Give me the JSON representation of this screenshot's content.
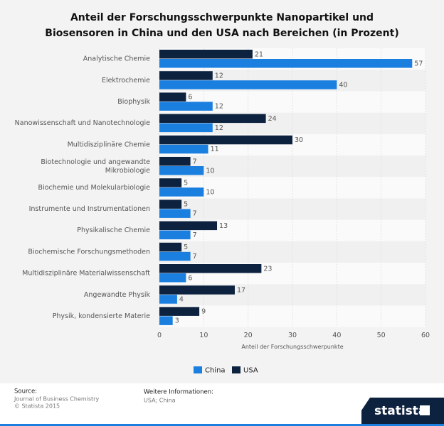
{
  "chart_data": {
    "type": "hbar",
    "title": "Anteil der Forschungsschwerpunkte Nanopartikel und Biosensoren in China und den USA nach Bereichen (in Prozent)",
    "categories": [
      "Analytische Chemie",
      "Elektrochemie",
      "Biophysik",
      "Nanowissenschaft und Nanotechnologie",
      "Multidisziplinäre Chemie",
      "Biotechnologie und angewandte Mikrobiologie",
      "Biochemie und Molekularbiologie",
      "Instrumente und Instrumentationen",
      "Physikalische Chemie",
      "Biochemische Forschungsmethoden",
      "Multidisziplinäre Materialwissenschaft",
      "Angewandte Physik",
      "Physik, kondensierte Materie"
    ],
    "series": [
      {
        "name": "China",
        "color": "#1b7fe0",
        "values": [
          57,
          40,
          12,
          12,
          11,
          10,
          10,
          7,
          7,
          7,
          6,
          4,
          3
        ]
      },
      {
        "name": "USA",
        "color": "#0d223f",
        "values": [
          21,
          12,
          6,
          24,
          30,
          7,
          5,
          5,
          13,
          5,
          23,
          17,
          9
        ]
      }
    ],
    "xlabel": "Anteil der Forschungsschwerpunkte",
    "xlim": [
      0,
      60
    ],
    "xticks": [
      0,
      10,
      20,
      30,
      40,
      50,
      60
    ],
    "legend": "bottom"
  },
  "footer": {
    "source_label": "Source:",
    "source": "Journal of Business Chemistry",
    "copyright": "© Statista 2015",
    "info_label": "Weitere Informationen:",
    "info": "USA; China",
    "brand": "statista"
  }
}
